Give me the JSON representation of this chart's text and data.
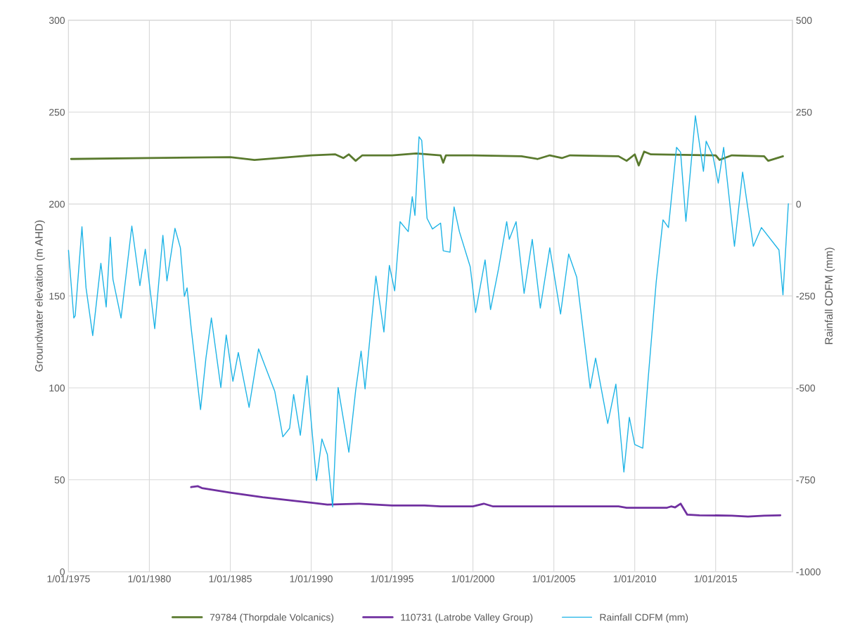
{
  "chart_data": {
    "type": "line",
    "ylabel": "Groundwater elevation (m AHD)",
    "y2label": "Rainfall CDFM (mm)",
    "xlim": [
      "1975-01-01",
      "2019-10"
    ],
    "xticks": [
      {
        "value": "1975-01-01",
        "label": "1/01/1975"
      },
      {
        "value": "1980-01-01",
        "label": "1/01/1980"
      },
      {
        "value": "1985-01-01",
        "label": "1/01/1985"
      },
      {
        "value": "1990-01-01",
        "label": "1/01/1990"
      },
      {
        "value": "1995-01-01",
        "label": "1/01/1995"
      },
      {
        "value": "2000-01-01",
        "label": "1/01/2000"
      },
      {
        "value": "2005-01-01",
        "label": "1/01/2005"
      },
      {
        "value": "2010-01-01",
        "label": "1/01/2010"
      },
      {
        "value": "2015-01-01",
        "label": "1/01/2015"
      }
    ],
    "ylim": [
      0,
      300
    ],
    "yticks": [
      0,
      50,
      100,
      150,
      200,
      250,
      300
    ],
    "y2lim": [
      -1000,
      500
    ],
    "y2ticks": [
      -1000,
      -750,
      -500,
      -250,
      0,
      250,
      500
    ],
    "grid": true,
    "legend": "bottom",
    "marker": "none",
    "line_style": "solid",
    "series": [
      {
        "name": "79784 (Thorpdale Volcanics)",
        "color": "#5a7a2e",
        "x": [
          "1975-03",
          "1980-01",
          "1985-01",
          "1986-07",
          "1988-01",
          "1990-01",
          "1991-07",
          "1992-01",
          "1992-05",
          "1992-10",
          "1993-03",
          "1995-01",
          "1996-07",
          "1998-01",
          "1998-03",
          "1998-05",
          "2000-01",
          "2003-01",
          "2004-01",
          "2004-10",
          "2005-07",
          "2006-01",
          "2009-01",
          "2009-07",
          "2010-01",
          "2010-04",
          "2010-08",
          "2011-01",
          "2015-01",
          "2015-04",
          "2016-01",
          "2018-01",
          "2018-04",
          "2019-03"
        ],
        "values": [
          224.5,
          225,
          225.5,
          224,
          225,
          226.5,
          227,
          225,
          227,
          223.5,
          226.5,
          226.5,
          227.5,
          226.5,
          222.5,
          226.5,
          226.5,
          226,
          224.5,
          226.5,
          225,
          226.5,
          226,
          223.5,
          227,
          221,
          228.5,
          227,
          226.5,
          224,
          226.5,
          226,
          223.5,
          226
        ]
      },
      {
        "name": "110731 (Latrobe Valley Group)",
        "color": "#7030a0",
        "x": [
          "1982-08",
          "1983-01",
          "1983-04",
          "1985-01",
          "1987-01",
          "1989-01",
          "1990-01",
          "1991-01",
          "1993-01",
          "1995-01",
          "1997-01",
          "1998-01",
          "2000-01",
          "2000-09",
          "2001-04",
          "2009-01",
          "2009-07",
          "2012-01",
          "2012-04",
          "2012-07",
          "2012-11",
          "2013-04",
          "2014-01",
          "2016-01",
          "2017-01",
          "2018-01",
          "2019-01"
        ],
        "values": [
          46,
          46.5,
          45.5,
          43,
          40.5,
          38.5,
          37.5,
          36.5,
          37,
          36,
          36,
          35.5,
          35.5,
          37,
          35.5,
          35.5,
          34.8,
          34.8,
          35.5,
          35,
          37,
          31,
          30.7,
          30.5,
          30,
          30.5,
          30.7
        ]
      },
      {
        "name": "Rainfall CDFM (mm)",
        "color": "#1fb4e6",
        "axis": "y2",
        "x": [
          "1975-01",
          "1975-05",
          "1975-06",
          "1975-11",
          "1976-02",
          "1976-07",
          "1977-01",
          "1977-05",
          "1977-08",
          "1977-10",
          "1978-04",
          "1978-12",
          "1979-06",
          "1979-10",
          "1980-05",
          "1980-11",
          "1981-02",
          "1981-08",
          "1981-12",
          "1982-03",
          "1982-05",
          "1982-08",
          "1983-03",
          "1983-07",
          "1983-11",
          "1984-06",
          "1984-10",
          "1985-03",
          "1985-07",
          "1986-03",
          "1986-10",
          "1987-04",
          "1987-10",
          "1988-04",
          "1988-09",
          "1988-12",
          "1989-05",
          "1989-10",
          "1990-05",
          "1990-09",
          "1991-01",
          "1991-05",
          "1991-09",
          "1992-05",
          "1992-10",
          "1993-02",
          "1993-05",
          "1994-01",
          "1994-07",
          "1994-11",
          "1995-03",
          "1995-07",
          "1996-01",
          "1996-04",
          "1996-06",
          "1996-09",
          "1996-11",
          "1997-03",
          "1997-07",
          "1998-01",
          "1998-03",
          "1998-08",
          "1998-11",
          "1999-03",
          "1999-11",
          "2000-03",
          "2000-10",
          "2001-02",
          "2001-08",
          "2002-02",
          "2002-04",
          "2002-09",
          "2003-03",
          "2003-09",
          "2004-03",
          "2004-10",
          "2005-06",
          "2005-12",
          "2006-06",
          "2006-07",
          "2007-04",
          "2007-08",
          "2008-05",
          "2008-11",
          "2009-05",
          "2009-09",
          "2010-01",
          "2010-07",
          "2010-11",
          "2011-05",
          "2011-10",
          "2012-02",
          "2012-08",
          "2012-11",
          "2013-03",
          "2013-10",
          "2014-04",
          "2014-06",
          "2014-11",
          "2015-03",
          "2015-07",
          "2016-03",
          "2016-09",
          "2017-05",
          "2017-11",
          "2018-12",
          "2019-03",
          "2019-07"
        ],
        "values": [
          -126,
          -310,
          -304,
          -62,
          -228,
          -358,
          -161,
          -280,
          -90,
          -205,
          -310,
          -60,
          -222,
          -123,
          -339,
          -85,
          -209,
          -66,
          -119,
          -251,
          -228,
          -337,
          -559,
          -419,
          -310,
          -499,
          -356,
          -482,
          -404,
          -553,
          -394,
          -452,
          -509,
          -633,
          -610,
          -518,
          -629,
          -467,
          -752,
          -639,
          -681,
          -824,
          -499,
          -675,
          -507,
          -400,
          -503,
          -196,
          -348,
          -167,
          -236,
          -48,
          -75,
          20,
          -31,
          183,
          173,
          -39,
          -68,
          -52,
          -127,
          -131,
          -8,
          -75,
          -171,
          -295,
          -152,
          -287,
          -176,
          -48,
          -96,
          -48,
          -243,
          -96,
          -283,
          -119,
          -299,
          -136,
          -199,
          -230,
          -501,
          -419,
          -597,
          -490,
          -729,
          -580,
          -654,
          -664,
          -473,
          -211,
          -43,
          -64,
          154,
          141,
          -47,
          240,
          89,
          171,
          131,
          57,
          154,
          -115,
          87,
          -115,
          -64,
          -125,
          -247,
          1
        ]
      }
    ]
  }
}
